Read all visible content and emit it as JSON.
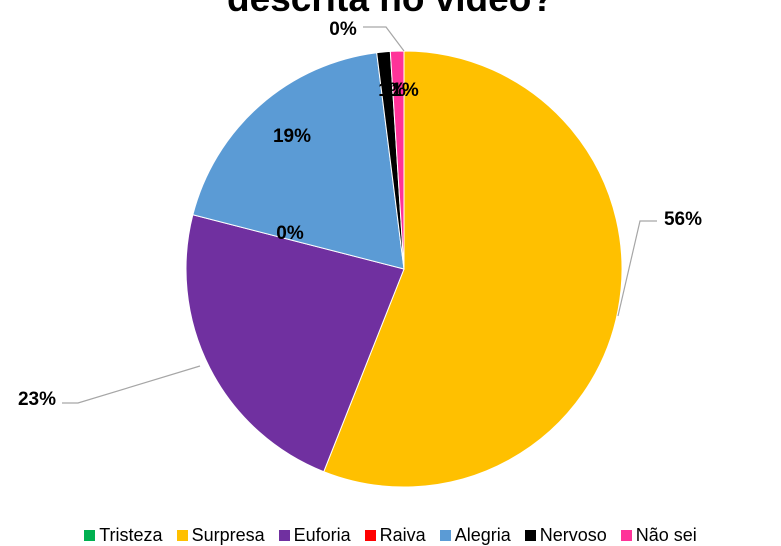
{
  "chart_data": {
    "type": "pie",
    "title": "descrita no vídeo?",
    "categories": [
      "Tristeza",
      "Surpresa",
      "Euforia",
      "Raiva",
      "Alegria",
      "Nervoso",
      "Não sei"
    ],
    "values": [
      0,
      56,
      23,
      0,
      19,
      1,
      1
    ],
    "labels": [
      "0%",
      "56%",
      "23%",
      "0%",
      "19%",
      "1%",
      "1%"
    ],
    "colors": [
      "#00b050",
      "#ffc000",
      "#7030a0",
      "#ff0000",
      "#5b9bd5",
      "#000000",
      "#ff3399"
    ],
    "legend_position": "bottom"
  }
}
